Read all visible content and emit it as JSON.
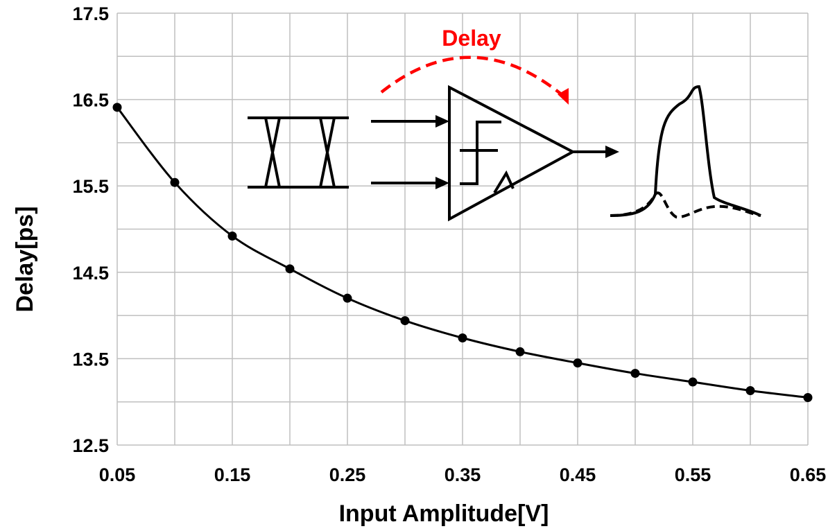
{
  "chart_data": {
    "type": "line",
    "title": "",
    "xlabel": "Input Amplitude[V]",
    "ylabel": "Delay[ps]",
    "xlim": [
      0.05,
      0.65
    ],
    "ylim": [
      12.5,
      17.5
    ],
    "x_ticks": [
      "0.05",
      "0.15",
      "0.25",
      "0.35",
      "0.45",
      "0.55",
      "0.65"
    ],
    "y_ticks": [
      "12.5",
      "13.5",
      "14.5",
      "15.5",
      "16.5",
      "17.5"
    ],
    "x_grid_step": 0.05,
    "y_grid_step": 0.5,
    "grid": true,
    "legend": "none",
    "series": [
      {
        "x": [
          0.05,
          0.1,
          0.15,
          0.2,
          0.25,
          0.3,
          0.35,
          0.4,
          0.45,
          0.5,
          0.55,
          0.6,
          0.65
        ],
        "y": [
          16.41,
          15.54,
          14.92,
          14.54,
          14.2,
          13.94,
          13.74,
          13.58,
          13.45,
          13.33,
          13.23,
          13.13,
          13.05
        ],
        "color": "#000000",
        "marker": "circle"
      }
    ],
    "annotation": {
      "text": "Delay",
      "color": "#ff0000"
    }
  }
}
